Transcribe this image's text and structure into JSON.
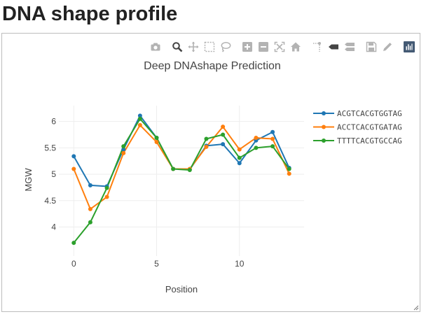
{
  "page": {
    "heading": "DNA shape profile"
  },
  "modebar": {
    "groups": [
      [
        "camera-icon"
      ],
      [
        "zoom-icon",
        "pan-icon",
        "box-select-icon",
        "lasso-select-icon"
      ],
      [
        "zoom-in-icon",
        "zoom-out-icon",
        "autoscale-icon",
        "reset-axes-icon"
      ],
      [
        "spike-lines-icon",
        "hover-closest-icon",
        "hover-compare-icon"
      ],
      [
        "save-icon",
        "edit-icon"
      ],
      [
        "plotly-logo-icon"
      ]
    ],
    "active": "zoom-icon"
  },
  "chart_data": {
    "type": "line",
    "title": "Deep DNAshape Prediction",
    "xlabel": "Position",
    "ylabel": "MGW",
    "x": [
      0,
      1,
      2,
      3,
      4,
      5,
      6,
      7,
      8,
      9,
      10,
      11,
      12,
      13
    ],
    "xlim": [
      -0.9,
      13.9
    ],
    "ylim": [
      3.45,
      6.3
    ],
    "x_ticks": [
      0,
      5,
      10
    ],
    "x_tick_labels": [
      "0",
      "5",
      "10"
    ],
    "y_ticks": [
      4,
      4.5,
      5,
      5.5,
      6
    ],
    "y_tick_labels": [
      "4",
      "4.5",
      "5",
      "5.5",
      "6"
    ],
    "grid": true,
    "legend_position": "right",
    "series": [
      {
        "name": "ACGTCACGTGGTAG",
        "color": "#1f77b4",
        "values": [
          5.34,
          4.79,
          4.77,
          5.47,
          6.11,
          5.69,
          5.1,
          5.09,
          5.54,
          5.57,
          5.21,
          5.64,
          5.8,
          5.12
        ]
      },
      {
        "name": "ACCTCACGTGATAG",
        "color": "#ff7f0e",
        "values": [
          5.1,
          4.34,
          4.57,
          5.4,
          5.93,
          5.61,
          5.1,
          5.1,
          5.52,
          5.9,
          5.47,
          5.69,
          5.67,
          5.01
        ]
      },
      {
        "name": "TTTTCACGTGCCAG",
        "color": "#2ca02c",
        "values": [
          3.7,
          4.09,
          4.74,
          5.53,
          6.05,
          5.69,
          5.1,
          5.08,
          5.67,
          5.75,
          5.31,
          5.5,
          5.53,
          5.1
        ]
      }
    ]
  }
}
